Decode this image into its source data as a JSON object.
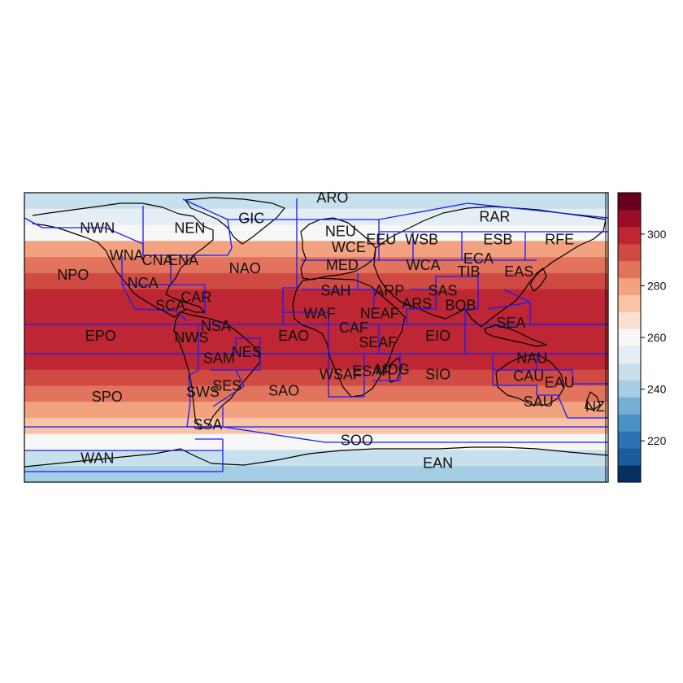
{
  "map": {
    "projection": "equirectangular",
    "extent": {
      "lon": [
        -180,
        180
      ],
      "lat": [
        -90,
        90
      ]
    },
    "field_bands": [
      {
        "lat": [
          90,
          80
        ],
        "value": 246
      },
      {
        "lat": [
          80,
          70
        ],
        "value": 256
      },
      {
        "lat": [
          70,
          60
        ],
        "value": 263
      },
      {
        "lat": [
          60,
          50
        ],
        "value": 278
      },
      {
        "lat": [
          50,
          40
        ],
        "value": 285
      },
      {
        "lat": [
          40,
          30
        ],
        "value": 292
      },
      {
        "lat": [
          30,
          20
        ],
        "value": 298
      },
      {
        "lat": [
          20,
          10
        ],
        "value": 300
      },
      {
        "lat": [
          10,
          0
        ],
        "value": 302
      },
      {
        "lat": [
          0,
          -10
        ],
        "value": 301
      },
      {
        "lat": [
          -10,
          -20
        ],
        "value": 299
      },
      {
        "lat": [
          -20,
          -30
        ],
        "value": 296
      },
      {
        "lat": [
          -30,
          -40
        ],
        "value": 289
      },
      {
        "lat": [
          -40,
          -50
        ],
        "value": 281
      },
      {
        "lat": [
          -50,
          -60
        ],
        "value": 274
      },
      {
        "lat": [
          -60,
          -70
        ],
        "value": 262
      },
      {
        "lat": [
          -70,
          -80
        ],
        "value": 247
      },
      {
        "lat": [
          -80,
          -90
        ],
        "value": 240
      }
    ],
    "regions": [
      {
        "label": "ARO",
        "lon": 10,
        "lat": 87
      },
      {
        "label": "GIC",
        "lon": -40,
        "lat": 74
      },
      {
        "label": "RAR",
        "lon": 110,
        "lat": 75
      },
      {
        "label": "NWN",
        "lon": -135,
        "lat": 68
      },
      {
        "label": "NEN",
        "lon": -78,
        "lat": 68
      },
      {
        "label": "NEU",
        "lon": 15,
        "lat": 66
      },
      {
        "label": "EEU",
        "lon": 40,
        "lat": 61
      },
      {
        "label": "WSB",
        "lon": 65,
        "lat": 61
      },
      {
        "label": "ESB",
        "lon": 112,
        "lat": 61
      },
      {
        "label": "RFE",
        "lon": 150,
        "lat": 61
      },
      {
        "label": "WCE",
        "lon": 20,
        "lat": 56
      },
      {
        "label": "WNA",
        "lon": -117,
        "lat": 51
      },
      {
        "label": "CNA",
        "lon": -98,
        "lat": 48
      },
      {
        "label": "ENA",
        "lon": -82,
        "lat": 48
      },
      {
        "label": "ECA",
        "lon": 100,
        "lat": 49
      },
      {
        "label": "NAO",
        "lon": -44,
        "lat": 43
      },
      {
        "label": "MED",
        "lon": 16,
        "lat": 45
      },
      {
        "label": "WCA",
        "lon": 66,
        "lat": 45
      },
      {
        "label": "TIB",
        "lon": 94,
        "lat": 41
      },
      {
        "label": "EAS",
        "lon": 125,
        "lat": 41
      },
      {
        "label": "NPO",
        "lon": -150,
        "lat": 39
      },
      {
        "label": "NCA",
        "lon": -107,
        "lat": 34
      },
      {
        "label": "SAH",
        "lon": 12,
        "lat": 29
      },
      {
        "label": "ARP",
        "lon": 45,
        "lat": 29
      },
      {
        "label": "SAS",
        "lon": 78,
        "lat": 29
      },
      {
        "label": "CAR",
        "lon": -74,
        "lat": 25
      },
      {
        "label": "SCA",
        "lon": -90,
        "lat": 20
      },
      {
        "label": "ARS",
        "lon": 62,
        "lat": 21
      },
      {
        "label": "BOB",
        "lon": 89,
        "lat": 20
      },
      {
        "label": "WAF",
        "lon": 2,
        "lat": 15
      },
      {
        "label": "NEAF",
        "lon": 39,
        "lat": 15
      },
      {
        "label": "NSA",
        "lon": -62,
        "lat": 7
      },
      {
        "label": "SEA",
        "lon": 120,
        "lat": 9
      },
      {
        "label": "CAF",
        "lon": 23,
        "lat": 6
      },
      {
        "label": "EPO",
        "lon": -133,
        "lat": 1
      },
      {
        "label": "NWS",
        "lon": -77,
        "lat": 0
      },
      {
        "label": "EAO",
        "lon": -14,
        "lat": 1
      },
      {
        "label": "EIO",
        "lon": 75,
        "lat": 1
      },
      {
        "label": "SEAF",
        "lon": 38,
        "lat": -3
      },
      {
        "label": "NES",
        "lon": -43,
        "lat": -9
      },
      {
        "label": "SAM",
        "lon": -60,
        "lat": -13
      },
      {
        "label": "NAU",
        "lon": 133,
        "lat": -13
      },
      {
        "label": "ESAF",
        "lon": 34,
        "lat": -21
      },
      {
        "label": "MDG",
        "lon": 47,
        "lat": -20
      },
      {
        "label": "WSAF",
        "lon": 15,
        "lat": -23
      },
      {
        "label": "SIO",
        "lon": 75,
        "lat": -23
      },
      {
        "label": "CAU",
        "lon": 131,
        "lat": -24
      },
      {
        "label": "SES",
        "lon": -55,
        "lat": -30
      },
      {
        "label": "EAU",
        "lon": 150,
        "lat": -28
      },
      {
        "label": "SWS",
        "lon": -70,
        "lat": -34
      },
      {
        "label": "SAO",
        "lon": -20,
        "lat": -33
      },
      {
        "label": "SPO",
        "lon": -129,
        "lat": -37
      },
      {
        "label": "SAU",
        "lon": 137,
        "lat": -40
      },
      {
        "label": "NZ",
        "lon": 172,
        "lat": -43
      },
      {
        "label": "SSA",
        "lon": -67,
        "lat": -54
      },
      {
        "label": "SOO",
        "lon": 25,
        "lat": -64
      },
      {
        "label": "WAN",
        "lon": -135,
        "lat": -75
      },
      {
        "label": "EAN",
        "lon": 75,
        "lat": -78
      }
    ],
    "boundary_color": "#1a1aff",
    "coast_color": "#000000"
  },
  "colorbar": {
    "min": 204,
    "max": 316,
    "colors": [
      "#053061",
      "#1c5c9c",
      "#2c72b4",
      "#4a91c5",
      "#76afd4",
      "#a5cde3",
      "#c8e0ec",
      "#e4eef4",
      "#f7f7f7",
      "#fbe1d2",
      "#f9c3a6",
      "#f2a27f",
      "#e2735c",
      "#d04a44",
      "#bd2632",
      "#9d0c26",
      "#67001f"
    ],
    "ticks": [
      "220",
      "240",
      "260",
      "280",
      "300"
    ],
    "tick_values": [
      220,
      240,
      260,
      280,
      300
    ]
  }
}
